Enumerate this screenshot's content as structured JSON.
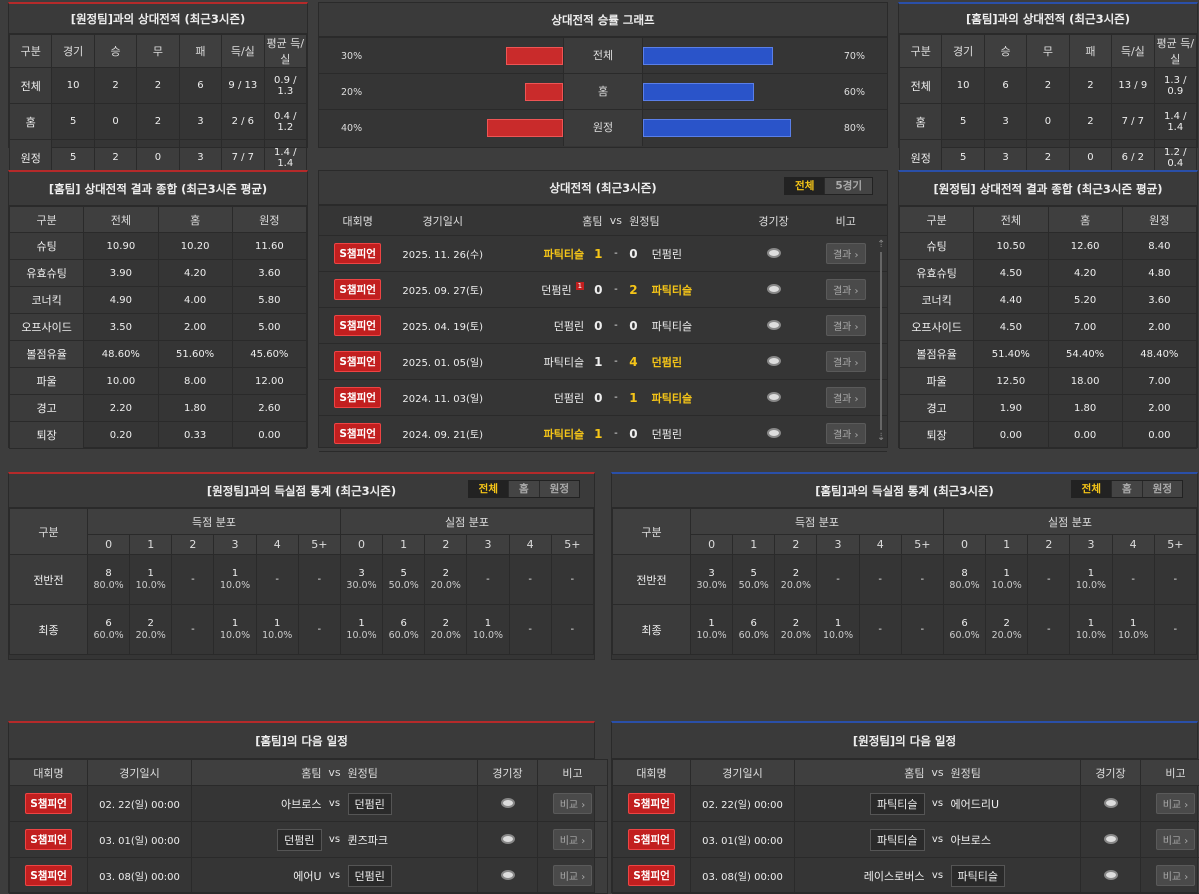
{
  "h2h_away": {
    "title": "[원정팀]과의 상대전적 (최근3시즌)",
    "headers": [
      "구분",
      "경기",
      "승",
      "무",
      "패",
      "득/실",
      "평균 득/실"
    ],
    "rows": [
      [
        "전체",
        "10",
        "2",
        "2",
        "6",
        "9 / 13",
        "0.9 / 1.3"
      ],
      [
        "홈",
        "5",
        "0",
        "2",
        "3",
        "2 / 6",
        "0.4 / 1.2"
      ],
      [
        "원정",
        "5",
        "2",
        "0",
        "3",
        "7 / 7",
        "1.4 / 1.4"
      ]
    ]
  },
  "winrate_graph": {
    "title": "상대전적 승률 그래프",
    "rows": [
      {
        "label": "전체",
        "left_pct": "30%",
        "right_pct": "70%",
        "left": 30,
        "right": 70
      },
      {
        "label": "홈",
        "left_pct": "20%",
        "right_pct": "60%",
        "left": 20,
        "right": 60
      },
      {
        "label": "원정",
        "left_pct": "40%",
        "right_pct": "80%",
        "left": 40,
        "right": 80
      }
    ]
  },
  "h2h_home": {
    "title": "[홈팀]과의 상대전적 (최근3시즌)",
    "headers": [
      "구분",
      "경기",
      "승",
      "무",
      "패",
      "득/실",
      "평균 득/실"
    ],
    "rows": [
      [
        "전체",
        "10",
        "6",
        "2",
        "2",
        "13 / 9",
        "1.3 / 0.9"
      ],
      [
        "홈",
        "5",
        "3",
        "0",
        "2",
        "7 / 7",
        "1.4 / 1.4"
      ],
      [
        "원정",
        "5",
        "3",
        "2",
        "0",
        "6 / 2",
        "1.2 / 0.4"
      ]
    ]
  },
  "home_summary": {
    "title": "[홈팀] 상대전적 결과 종합 (최근3시즌 평균)",
    "headers": [
      "구분",
      "전체",
      "홈",
      "원정"
    ],
    "rows": [
      [
        "슈팅",
        "10.90",
        "10.20",
        "11.60"
      ],
      [
        "유효슈팅",
        "3.90",
        "4.20",
        "3.60"
      ],
      [
        "코너킥",
        "4.90",
        "4.00",
        "5.80"
      ],
      [
        "오프사이드",
        "3.50",
        "2.00",
        "5.00"
      ],
      [
        "볼점유율",
        "48.60%",
        "51.60%",
        "45.60%"
      ],
      [
        "파울",
        "10.00",
        "8.00",
        "12.00"
      ],
      [
        "경고",
        "2.20",
        "1.80",
        "2.60"
      ],
      [
        "퇴장",
        "0.20",
        "0.33",
        "0.00"
      ]
    ]
  },
  "recent_matches": {
    "title": "상대전적 (최근3시즌)",
    "tabs": [
      "전체",
      "5경기"
    ],
    "headers": [
      "대회명",
      "경기일시",
      "홈팀",
      "vs",
      "원정팀",
      "경기장",
      "비고"
    ],
    "badge": "S챔피언",
    "result_label": "결과 ›",
    "rows": [
      {
        "date": "2025. 11. 26(수)",
        "home": "파틱티슬",
        "hs": "1",
        "as": "0",
        "away": "던펌린",
        "hwin": true,
        "awin": false,
        "card": ""
      },
      {
        "date": "2025. 09. 27(토)",
        "home": "던펌린",
        "hs": "0",
        "as": "2",
        "away": "파틱티슬",
        "hwin": false,
        "awin": true,
        "card": "1"
      },
      {
        "date": "2025. 04. 19(토)",
        "home": "던펌린",
        "hs": "0",
        "as": "0",
        "away": "파틱티슬",
        "hwin": false,
        "awin": false,
        "card": ""
      },
      {
        "date": "2025. 01. 05(일)",
        "home": "파틱티슬",
        "hs": "1",
        "as": "4",
        "away": "던펌린",
        "hwin": false,
        "awin": true,
        "card": ""
      },
      {
        "date": "2024. 11. 03(일)",
        "home": "던펌린",
        "hs": "0",
        "as": "1",
        "away": "파틱티슬",
        "hwin": false,
        "awin": true,
        "card": ""
      },
      {
        "date": "2024. 09. 21(토)",
        "home": "파틱티슬",
        "hs": "1",
        "as": "0",
        "away": "던펌린",
        "hwin": true,
        "awin": false,
        "card": ""
      }
    ]
  },
  "away_summary": {
    "title": "[원정팀] 상대전적 결과 종합 (최근3시즌 평균)",
    "headers": [
      "구분",
      "전체",
      "홈",
      "원정"
    ],
    "rows": [
      [
        "슈팅",
        "10.50",
        "12.60",
        "8.40"
      ],
      [
        "유효슈팅",
        "4.50",
        "4.20",
        "4.80"
      ],
      [
        "코너킥",
        "4.40",
        "5.20",
        "3.60"
      ],
      [
        "오프사이드",
        "4.50",
        "7.00",
        "2.00"
      ],
      [
        "볼점유율",
        "51.40%",
        "54.40%",
        "48.40%"
      ],
      [
        "파울",
        "12.50",
        "18.00",
        "7.00"
      ],
      [
        "경고",
        "1.90",
        "1.80",
        "2.00"
      ],
      [
        "퇴장",
        "0.00",
        "0.00",
        "0.00"
      ]
    ]
  },
  "goals_away": {
    "title": "[원정팀]과의 득실점 통계 (최근3시즌)",
    "tabs": [
      "전체",
      "홈",
      "원정"
    ],
    "col_label": "구분",
    "scored_label": "득점 분포",
    "conceded_label": "실점 분포",
    "buckets": [
      "0",
      "1",
      "2",
      "3",
      "4",
      "5+"
    ],
    "rows": [
      {
        "label": "전반전",
        "scored": [
          [
            "8",
            "80.0%"
          ],
          [
            "1",
            "10.0%"
          ],
          [
            "-",
            ""
          ],
          [
            "1",
            "10.0%"
          ],
          [
            "-",
            ""
          ],
          [
            "-",
            ""
          ]
        ],
        "conceded": [
          [
            "3",
            "30.0%"
          ],
          [
            "5",
            "50.0%"
          ],
          [
            "2",
            "20.0%"
          ],
          [
            "-",
            ""
          ],
          [
            "-",
            ""
          ],
          [
            "-",
            ""
          ]
        ]
      },
      {
        "label": "최종",
        "scored": [
          [
            "6",
            "60.0%"
          ],
          [
            "2",
            "20.0%"
          ],
          [
            "-",
            ""
          ],
          [
            "1",
            "10.0%"
          ],
          [
            "1",
            "10.0%"
          ],
          [
            "-",
            ""
          ]
        ],
        "conceded": [
          [
            "1",
            "10.0%"
          ],
          [
            "6",
            "60.0%"
          ],
          [
            "2",
            "20.0%"
          ],
          [
            "1",
            "10.0%"
          ],
          [
            "-",
            ""
          ],
          [
            "-",
            ""
          ]
        ]
      }
    ]
  },
  "goals_home": {
    "title": "[홈팀]과의 득실점 통계 (최근3시즌)",
    "tabs": [
      "전체",
      "홈",
      "원정"
    ],
    "col_label": "구분",
    "scored_label": "득점 분포",
    "conceded_label": "실점 분포",
    "buckets": [
      "0",
      "1",
      "2",
      "3",
      "4",
      "5+"
    ],
    "rows": [
      {
        "label": "전반전",
        "scored": [
          [
            "3",
            "30.0%"
          ],
          [
            "5",
            "50.0%"
          ],
          [
            "2",
            "20.0%"
          ],
          [
            "-",
            ""
          ],
          [
            "-",
            ""
          ],
          [
            "-",
            ""
          ]
        ],
        "conceded": [
          [
            "8",
            "80.0%"
          ],
          [
            "1",
            "10.0%"
          ],
          [
            "-",
            ""
          ],
          [
            "1",
            "10.0%"
          ],
          [
            "-",
            ""
          ],
          [
            "-",
            ""
          ]
        ]
      },
      {
        "label": "최종",
        "scored": [
          [
            "1",
            "10.0%"
          ],
          [
            "6",
            "60.0%"
          ],
          [
            "2",
            "20.0%"
          ],
          [
            "1",
            "10.0%"
          ],
          [
            "-",
            ""
          ],
          [
            "-",
            ""
          ]
        ],
        "conceded": [
          [
            "6",
            "60.0%"
          ],
          [
            "2",
            "20.0%"
          ],
          [
            "-",
            ""
          ],
          [
            "1",
            "10.0%"
          ],
          [
            "1",
            "10.0%"
          ],
          [
            "-",
            ""
          ]
        ]
      }
    ]
  },
  "next_home": {
    "title": "[홈팀]의 다음 일정",
    "headers": [
      "대회명",
      "경기일시",
      "홈팀",
      "vs",
      "원정팀",
      "경기장",
      "비고"
    ],
    "badge": "S챔피언",
    "btn": "비교 ›",
    "rows": [
      {
        "date": "02. 22(일) 00:00",
        "home": "아브로스",
        "away": "던펌린",
        "boxed": "away"
      },
      {
        "date": "03. 01(일) 00:00",
        "home": "던펌린",
        "away": "퀸즈파크",
        "boxed": "home"
      },
      {
        "date": "03. 08(일) 00:00",
        "home": "에어U",
        "away": "던펌린",
        "boxed": "away"
      }
    ]
  },
  "next_away": {
    "title": "[원정팀]의 다음 일정",
    "headers": [
      "대회명",
      "경기일시",
      "홈팀",
      "vs",
      "원정팀",
      "경기장",
      "비고"
    ],
    "badge": "S챔피언",
    "btn": "비교 ›",
    "rows": [
      {
        "date": "02. 22(일) 00:00",
        "home": "파틱티슬",
        "away": "에어드리U",
        "boxed": "home"
      },
      {
        "date": "03. 01(일) 00:00",
        "home": "파틱티슬",
        "away": "아브로스",
        "boxed": "home"
      },
      {
        "date": "03. 08(일) 00:00",
        "home": "레이스로버스",
        "away": "파틱티슬",
        "boxed": "away"
      }
    ]
  }
}
